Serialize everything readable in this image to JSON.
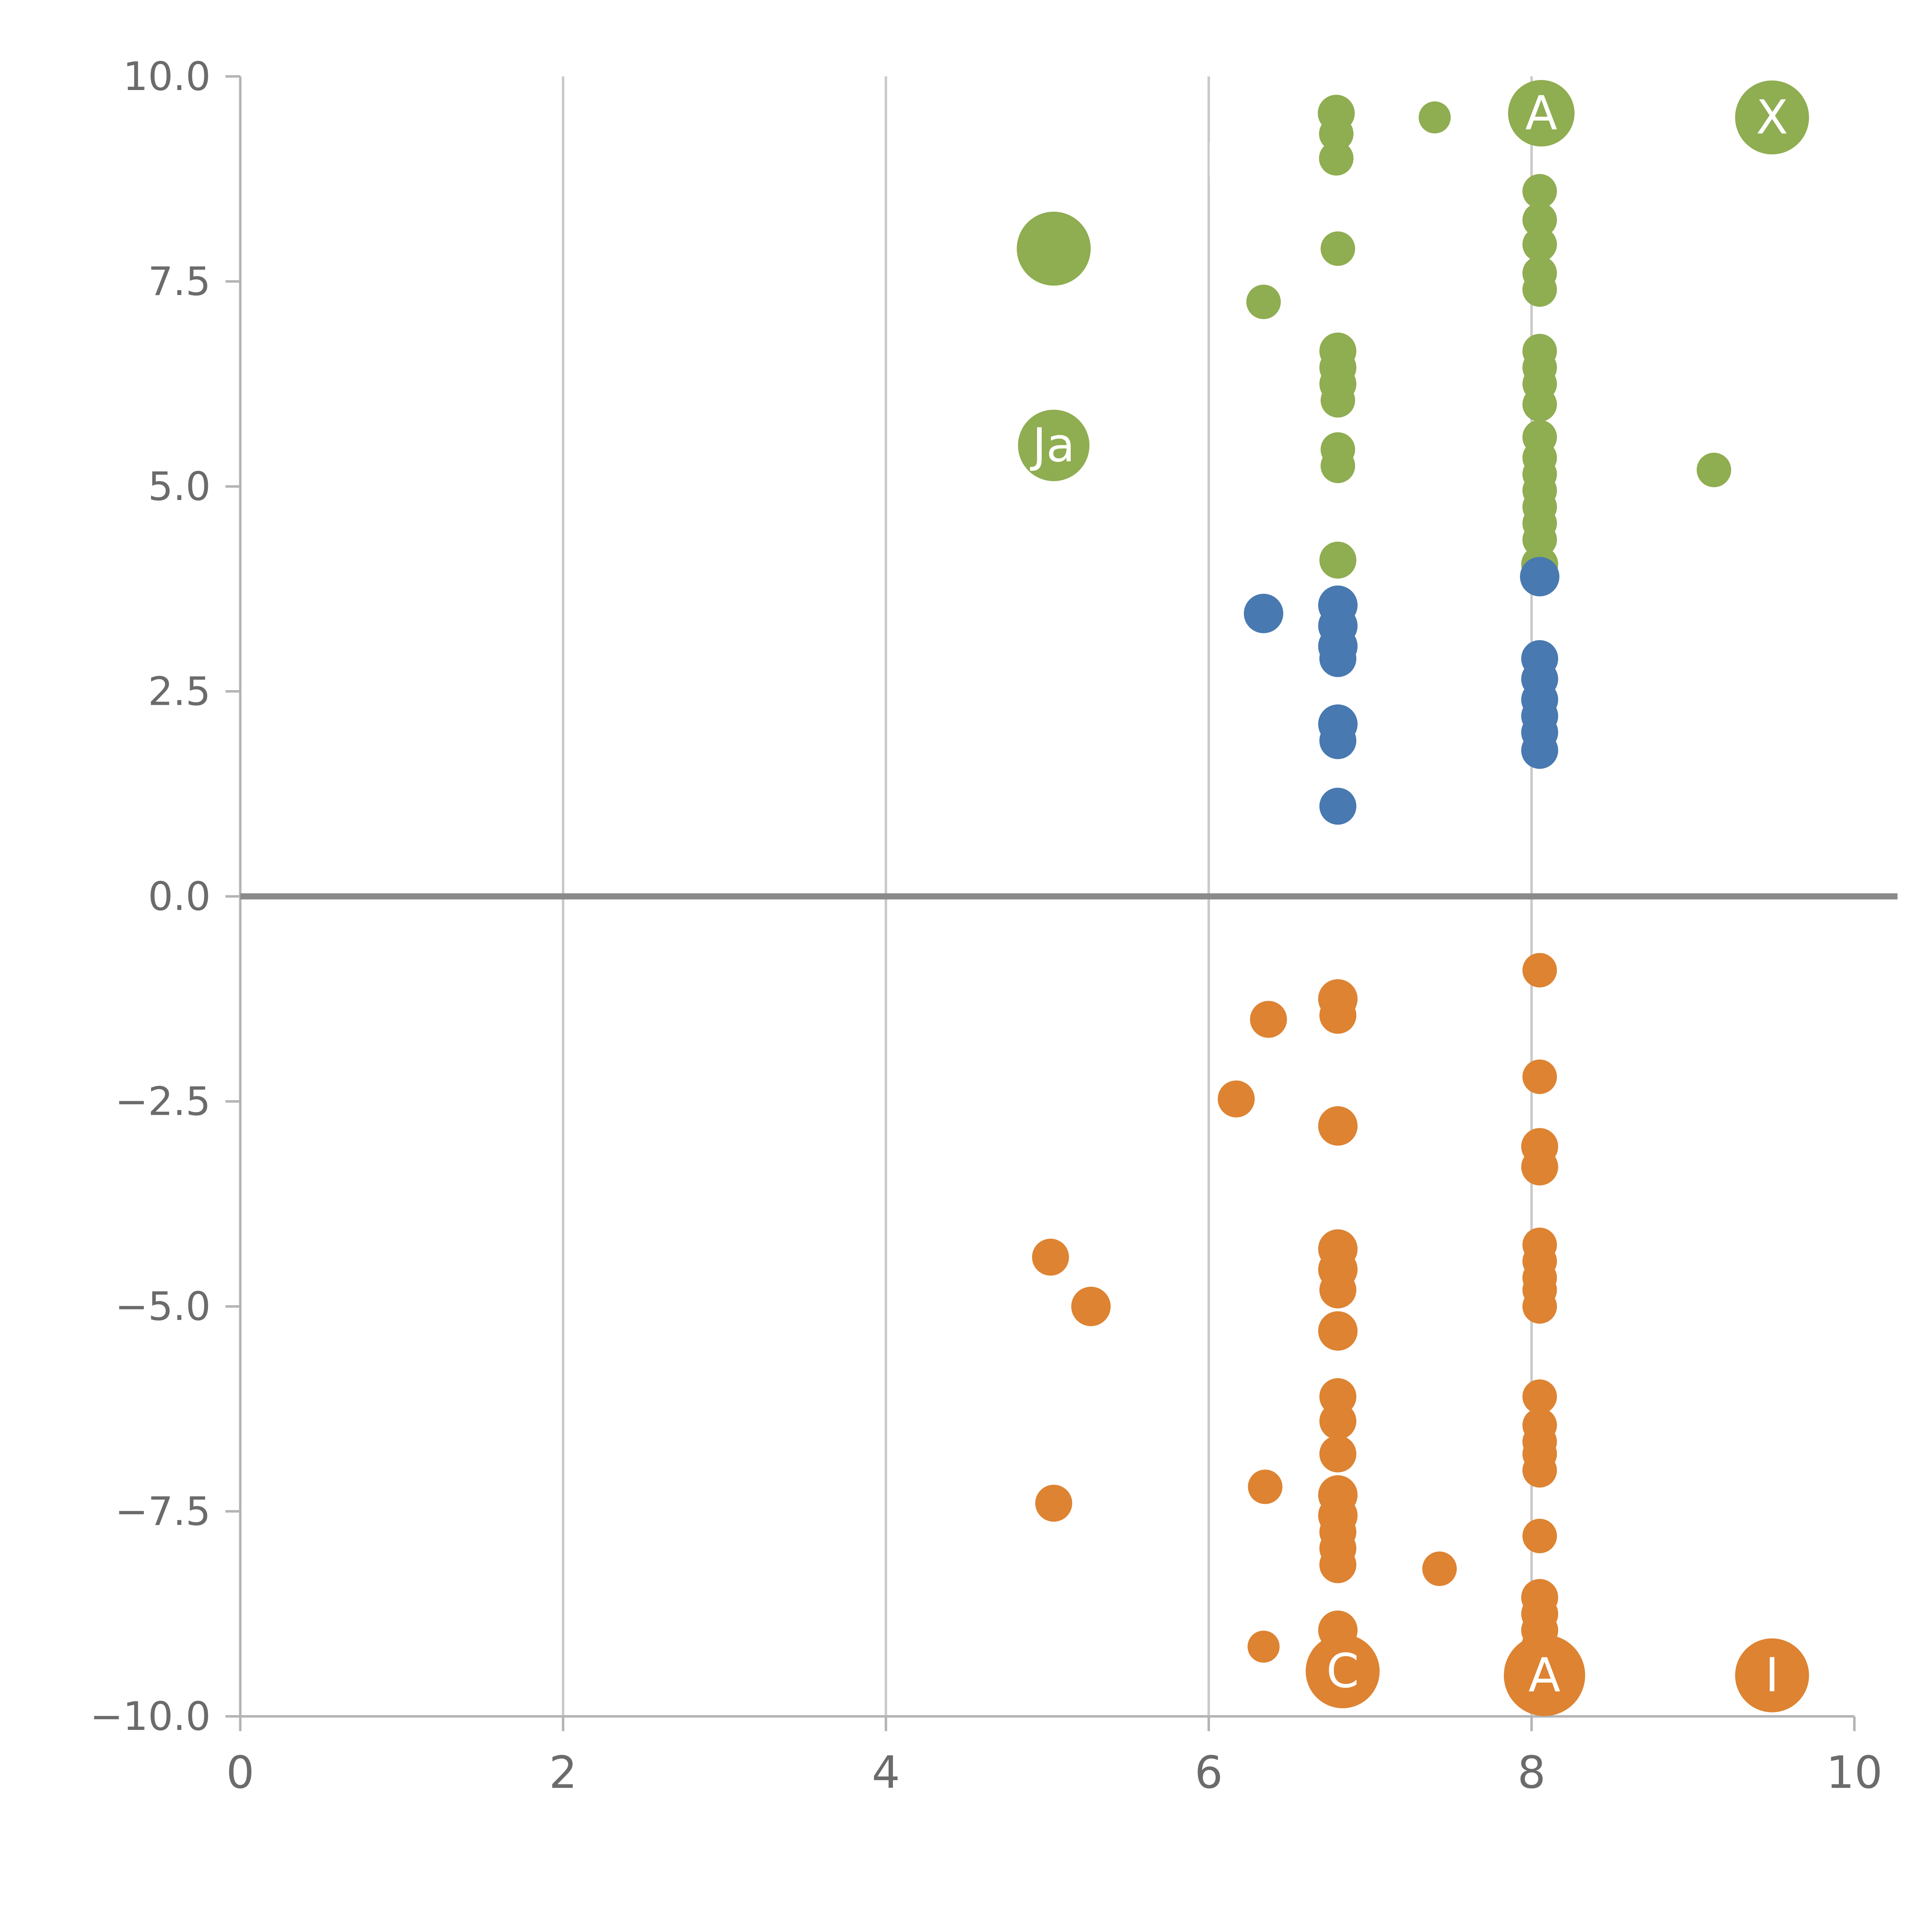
{
  "figure": {
    "background": "#ffffff"
  },
  "chart_data": {
    "type": "scatter",
    "title": "",
    "xlabel": "",
    "ylabel": "",
    "xlim": [
      0,
      10
    ],
    "ylim": [
      -10,
      10
    ],
    "x_ticks": [
      0,
      2,
      4,
      6,
      8,
      10
    ],
    "x_tick_labels": [
      "0",
      "2",
      "4",
      "6",
      "8",
      "10"
    ],
    "y_ticks": [
      10.0,
      7.5,
      5.0,
      2.5,
      0.0,
      -2.5,
      -5.0,
      -7.5,
      -10.0
    ],
    "y_tick_labels": [
      "10.0",
      "7.5",
      "5.0",
      "2.5",
      "0.0",
      "−2.5",
      "−5.0",
      "−7.5",
      "−10.0"
    ],
    "grid": {
      "vertical_x": [
        2,
        4,
        6,
        8
      ],
      "zero_line_y": 0
    },
    "legend": "none",
    "style": {
      "grid_color": "#c9c9c9",
      "spine_color": "#b4b4b4",
      "zero_line_color": "#8a8a8a",
      "tick_label_color": "#6b6b6b",
      "point_label_color": "#ffffff"
    },
    "series": [
      {
        "name": "green",
        "color": "#8fad51",
        "points": [
          [
            5.04,
            7.9,
            30
          ],
          [
            5.04,
            5.5,
            29,
            "Ja"
          ],
          [
            6.34,
            7.25,
            14
          ],
          [
            6.79,
            9.55,
            15
          ],
          [
            6.79,
            9.3,
            14
          ],
          [
            6.79,
            9.0,
            14
          ],
          [
            7.4,
            9.5,
            13
          ],
          [
            8.06,
            9.55,
            27,
            "A"
          ],
          [
            9.49,
            9.5,
            30,
            "X"
          ],
          [
            6.8,
            7.9,
            14
          ],
          [
            6.8,
            6.65,
            15
          ],
          [
            6.8,
            6.45,
            15
          ],
          [
            6.8,
            6.25,
            15
          ],
          [
            6.8,
            6.05,
            14
          ],
          [
            6.8,
            5.45,
            14
          ],
          [
            6.8,
            5.25,
            14
          ],
          [
            6.8,
            4.1,
            15
          ],
          [
            8.05,
            8.6,
            14
          ],
          [
            8.05,
            8.25,
            14
          ],
          [
            8.05,
            7.95,
            14
          ],
          [
            8.05,
            7.6,
            14
          ],
          [
            8.05,
            7.4,
            14
          ],
          [
            8.05,
            6.65,
            14
          ],
          [
            8.05,
            6.45,
            14
          ],
          [
            8.05,
            6.25,
            14
          ],
          [
            8.05,
            6.0,
            14
          ],
          [
            8.05,
            5.6,
            14
          ],
          [
            8.05,
            5.35,
            14
          ],
          [
            8.05,
            5.15,
            14
          ],
          [
            8.05,
            4.95,
            14
          ],
          [
            8.05,
            4.75,
            14
          ],
          [
            8.05,
            4.55,
            14
          ],
          [
            8.05,
            4.35,
            14
          ],
          [
            8.05,
            4.05,
            15
          ],
          [
            9.13,
            5.2,
            14
          ]
        ]
      },
      {
        "name": "blue",
        "color": "#4879b0",
        "points": [
          [
            6.34,
            3.45,
            16
          ],
          [
            6.8,
            3.55,
            16
          ],
          [
            6.8,
            3.3,
            16
          ],
          [
            6.8,
            3.05,
            16
          ],
          [
            6.8,
            2.9,
            15
          ],
          [
            6.8,
            2.1,
            16
          ],
          [
            6.8,
            1.9,
            15
          ],
          [
            6.8,
            1.1,
            15
          ],
          [
            8.05,
            3.9,
            16
          ],
          [
            8.05,
            2.9,
            15
          ],
          [
            8.05,
            2.65,
            15
          ],
          [
            8.05,
            2.4,
            15
          ],
          [
            8.05,
            2.2,
            15
          ],
          [
            8.05,
            2.0,
            15
          ],
          [
            8.05,
            1.78,
            15
          ]
        ]
      },
      {
        "name": "orange",
        "color": "#dd8332",
        "points": [
          [
            6.37,
            -1.5,
            15
          ],
          [
            6.8,
            -1.25,
            16
          ],
          [
            6.8,
            -1.45,
            15
          ],
          [
            6.17,
            -2.47,
            15
          ],
          [
            6.8,
            -2.8,
            16
          ],
          [
            8.05,
            -0.9,
            14
          ],
          [
            8.05,
            -2.2,
            14
          ],
          [
            8.05,
            -3.05,
            15
          ],
          [
            8.05,
            -3.3,
            15
          ],
          [
            5.02,
            -4.4,
            15
          ],
          [
            5.27,
            -5.0,
            16
          ],
          [
            6.8,
            -4.3,
            16
          ],
          [
            6.8,
            -4.55,
            16
          ],
          [
            6.8,
            -4.8,
            15
          ],
          [
            6.8,
            -5.3,
            16
          ],
          [
            8.05,
            -4.25,
            14
          ],
          [
            8.05,
            -4.45,
            14
          ],
          [
            8.05,
            -4.65,
            14
          ],
          [
            8.05,
            -4.8,
            14
          ],
          [
            8.05,
            -5.0,
            14
          ],
          [
            6.8,
            -6.1,
            15
          ],
          [
            6.8,
            -6.4,
            15
          ],
          [
            6.8,
            -6.8,
            15
          ],
          [
            8.05,
            -6.1,
            14
          ],
          [
            8.05,
            -6.45,
            14
          ],
          [
            8.05,
            -6.65,
            14
          ],
          [
            8.05,
            -6.8,
            14
          ],
          [
            8.05,
            -7.0,
            14
          ],
          [
            6.35,
            -7.2,
            14
          ],
          [
            5.04,
            -7.4,
            15
          ],
          [
            6.8,
            -7.3,
            16
          ],
          [
            6.8,
            -7.55,
            16
          ],
          [
            6.8,
            -7.75,
            15
          ],
          [
            6.8,
            -7.95,
            15
          ],
          [
            6.8,
            -8.15,
            15
          ],
          [
            7.43,
            -8.2,
            14
          ],
          [
            8.05,
            -7.8,
            14
          ],
          [
            6.34,
            -9.15,
            13
          ],
          [
            6.8,
            -8.95,
            16
          ],
          [
            8.05,
            -8.55,
            15
          ],
          [
            8.05,
            -8.75,
            15
          ],
          [
            8.05,
            -8.95,
            15
          ],
          [
            8.05,
            -9.15,
            15
          ],
          [
            6.83,
            -9.45,
            30,
            "C"
          ],
          [
            8.08,
            -9.5,
            33,
            "A"
          ],
          [
            9.49,
            -9.5,
            30,
            "I"
          ]
        ]
      }
    ],
    "annotations": [
      {
        "x": 6.02,
        "y": 8.97,
        "text": "I"
      }
    ]
  }
}
